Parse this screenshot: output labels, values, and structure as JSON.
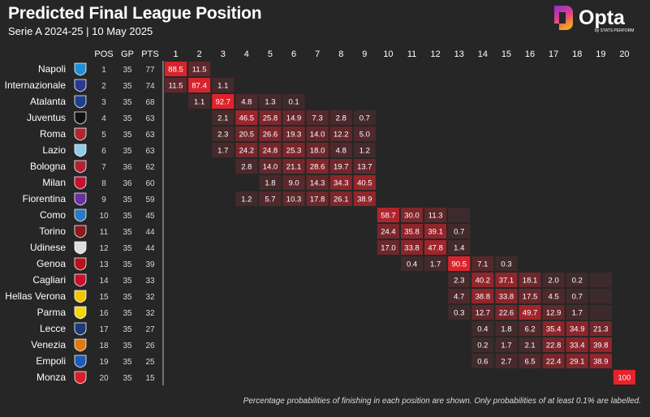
{
  "title": "Predicted Final League Position",
  "subtitle": "Serie A 2024-25 | 10 May 2025",
  "brand": {
    "name": "Opta",
    "tagline": "by STATS PERFORM",
    "accent_top": "#8b2fc9",
    "accent_bottom": "#f2a41c"
  },
  "footnote": "Percentage probabilities of finishing in each position are shown. Only probabilities of at least 0.1% are labelled.",
  "chart_data": {
    "type": "heatmap",
    "column_headers": [
      "POS",
      "GP",
      "PTS"
    ],
    "positions": [
      "1",
      "2",
      "3",
      "4",
      "5",
      "6",
      "7",
      "8",
      "9",
      "10",
      "11",
      "12",
      "13",
      "14",
      "15",
      "16",
      "17",
      "18",
      "19",
      "20"
    ],
    "colors": {
      "background": "#262626",
      "low": "#3d2a2c",
      "high": "#e8222c"
    },
    "teams": [
      {
        "name": "Napoli",
        "pos": 1,
        "gp": 35,
        "pts": 77,
        "crest": "#1f8fd6",
        "probs": [
          [
            1,
            88.5
          ],
          [
            2,
            11.5
          ]
        ]
      },
      {
        "name": "Internazionale",
        "pos": 2,
        "gp": 35,
        "pts": 74,
        "crest": "#2a3b8f",
        "probs": [
          [
            1,
            11.5
          ],
          [
            2,
            87.4
          ],
          [
            3,
            1.1
          ]
        ]
      },
      {
        "name": "Atalanta",
        "pos": 3,
        "gp": 35,
        "pts": 68,
        "crest": "#1f3f8a",
        "probs": [
          [
            2,
            1.1
          ],
          [
            3,
            92.7
          ],
          [
            4,
            4.8
          ],
          [
            5,
            1.3
          ],
          [
            6,
            0.1
          ]
        ]
      },
      {
        "name": "Juventus",
        "pos": 4,
        "gp": 35,
        "pts": 63,
        "crest": "#111111",
        "probs": [
          [
            3,
            2.1
          ],
          [
            4,
            46.5
          ],
          [
            5,
            25.8
          ],
          [
            6,
            14.9
          ],
          [
            7,
            7.3
          ],
          [
            8,
            2.8
          ],
          [
            9,
            0.7
          ]
        ]
      },
      {
        "name": "Roma",
        "pos": 5,
        "gp": 35,
        "pts": 63,
        "crest": "#b0262d",
        "probs": [
          [
            3,
            2.3
          ],
          [
            4,
            20.5
          ],
          [
            5,
            26.6
          ],
          [
            6,
            19.3
          ],
          [
            7,
            14.0
          ],
          [
            8,
            12.2
          ],
          [
            9,
            5.0
          ]
        ]
      },
      {
        "name": "Lazio",
        "pos": 6,
        "gp": 35,
        "pts": 63,
        "crest": "#8ec9ee",
        "probs": [
          [
            3,
            1.7
          ],
          [
            4,
            24.2
          ],
          [
            5,
            24.8
          ],
          [
            6,
            25.3
          ],
          [
            7,
            18.0
          ],
          [
            8,
            4.8
          ],
          [
            9,
            1.2
          ]
        ]
      },
      {
        "name": "Bologna",
        "pos": 7,
        "gp": 36,
        "pts": 62,
        "crest": "#b22234",
        "probs": [
          [
            4,
            2.8
          ],
          [
            5,
            14.0
          ],
          [
            6,
            21.1
          ],
          [
            7,
            28.6
          ],
          [
            8,
            19.7
          ],
          [
            9,
            13.7
          ]
        ]
      },
      {
        "name": "Milan",
        "pos": 8,
        "gp": 36,
        "pts": 60,
        "crest": "#c8102e",
        "probs": [
          [
            5,
            1.8
          ],
          [
            6,
            9.0
          ],
          [
            7,
            14.3
          ],
          [
            8,
            34.3
          ],
          [
            9,
            40.5
          ]
        ]
      },
      {
        "name": "Fiorentina",
        "pos": 9,
        "gp": 35,
        "pts": 59,
        "crest": "#6b2fa0",
        "probs": [
          [
            4,
            1.2
          ],
          [
            5,
            5.7
          ],
          [
            6,
            10.3
          ],
          [
            7,
            17.8
          ],
          [
            8,
            26.1
          ],
          [
            9,
            38.9
          ]
        ]
      },
      {
        "name": "Como",
        "pos": 10,
        "gp": 35,
        "pts": 45,
        "crest": "#2b78c5",
        "probs": [
          [
            10,
            58.7
          ],
          [
            11,
            30.0
          ],
          [
            12,
            11.3
          ],
          [
            13,
            0.0
          ]
        ]
      },
      {
        "name": "Torino",
        "pos": 11,
        "gp": 35,
        "pts": 44,
        "crest": "#8b1a1a",
        "probs": [
          [
            10,
            24.4
          ],
          [
            11,
            35.8
          ],
          [
            12,
            39.1
          ],
          [
            13,
            0.7
          ]
        ]
      },
      {
        "name": "Udinese",
        "pos": 12,
        "gp": 35,
        "pts": 44,
        "crest": "#dddddd",
        "probs": [
          [
            10,
            17.0
          ],
          [
            11,
            33.8
          ],
          [
            12,
            47.8
          ],
          [
            13,
            1.4
          ]
        ]
      },
      {
        "name": "Genoa",
        "pos": 13,
        "gp": 35,
        "pts": 39,
        "crest": "#b5121b",
        "probs": [
          [
            11,
            0.4
          ],
          [
            12,
            1.7
          ],
          [
            13,
            90.5
          ],
          [
            14,
            7.1
          ],
          [
            15,
            0.3
          ]
        ]
      },
      {
        "name": "Cagliari",
        "pos": 14,
        "gp": 35,
        "pts": 33,
        "crest": "#c8102e",
        "probs": [
          [
            13,
            2.3
          ],
          [
            14,
            40.2
          ],
          [
            15,
            37.1
          ],
          [
            16,
            18.1
          ],
          [
            17,
            2.0
          ],
          [
            18,
            0.2
          ],
          [
            19,
            0.0
          ]
        ]
      },
      {
        "name": "Hellas Verona",
        "pos": 15,
        "gp": 35,
        "pts": 32,
        "crest": "#f2c500",
        "probs": [
          [
            13,
            4.7
          ],
          [
            14,
            38.8
          ],
          [
            15,
            33.8
          ],
          [
            16,
            17.5
          ],
          [
            17,
            4.5
          ],
          [
            18,
            0.7
          ],
          [
            19,
            0.0
          ]
        ]
      },
      {
        "name": "Parma",
        "pos": 16,
        "gp": 35,
        "pts": 32,
        "crest": "#f2d900",
        "probs": [
          [
            13,
            0.3
          ],
          [
            14,
            12.7
          ],
          [
            15,
            22.6
          ],
          [
            16,
            49.7
          ],
          [
            17,
            12.9
          ],
          [
            18,
            1.7
          ],
          [
            19,
            0.0
          ]
        ]
      },
      {
        "name": "Lecce",
        "pos": 17,
        "gp": 35,
        "pts": 27,
        "crest": "#1a3d7a",
        "probs": [
          [
            14,
            0.4
          ],
          [
            15,
            1.8
          ],
          [
            16,
            6.2
          ],
          [
            17,
            35.4
          ],
          [
            18,
            34.9
          ],
          [
            19,
            21.3
          ]
        ]
      },
      {
        "name": "Venezia",
        "pos": 18,
        "gp": 35,
        "pts": 26,
        "crest": "#e07a10",
        "probs": [
          [
            14,
            0.2
          ],
          [
            15,
            1.7
          ],
          [
            16,
            2.1
          ],
          [
            17,
            22.8
          ],
          [
            18,
            33.4
          ],
          [
            19,
            39.8
          ]
        ]
      },
      {
        "name": "Empoli",
        "pos": 19,
        "gp": 35,
        "pts": 25,
        "crest": "#1e5bb8",
        "probs": [
          [
            14,
            0.6
          ],
          [
            15,
            2.7
          ],
          [
            16,
            6.5
          ],
          [
            17,
            22.4
          ],
          [
            18,
            29.1
          ],
          [
            19,
            38.9
          ]
        ]
      },
      {
        "name": "Monza",
        "pos": 20,
        "gp": 35,
        "pts": 15,
        "crest": "#d4202a",
        "probs": [
          [
            20,
            100
          ]
        ]
      }
    ]
  }
}
